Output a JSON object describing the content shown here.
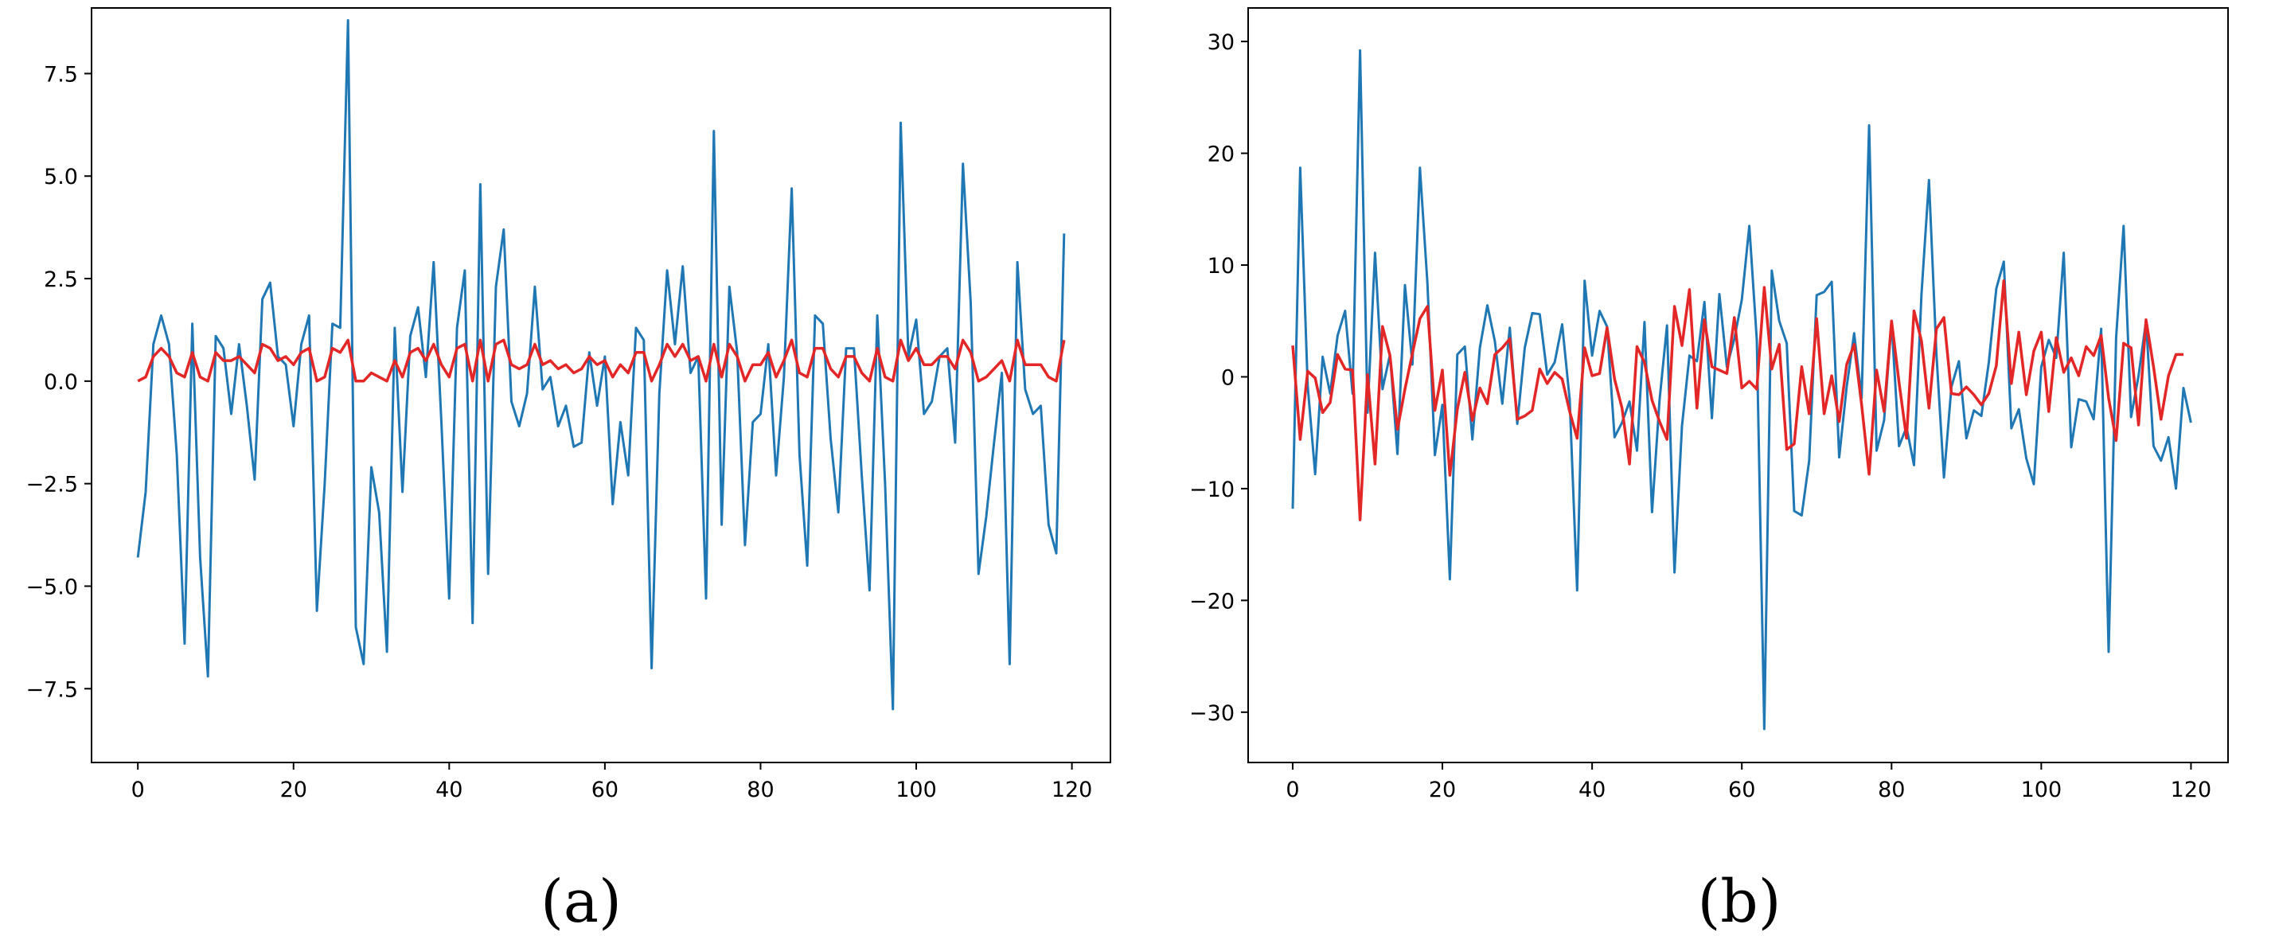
{
  "chart_data": [
    {
      "type": "line",
      "caption": "(a)",
      "xlim": [
        -5.95,
        124.95
      ],
      "ylim": [
        -9.3,
        9.1
      ],
      "xticks": [
        0,
        20,
        40,
        60,
        80,
        100,
        120
      ],
      "yticks": [
        -7.5,
        -5.0,
        -2.5,
        0.0,
        2.5,
        5.0,
        7.5
      ],
      "xtick_labels": [
        "0",
        "20",
        "40",
        "60",
        "80",
        "100",
        "120"
      ],
      "ytick_labels": [
        "−7.5",
        "−5.0",
        "−2.5",
        "0.0",
        "2.5",
        "5.0",
        "7.5"
      ],
      "grid": false,
      "series": [
        {
          "color": "#1f77b4",
          "values": [
            -4.3,
            -2.7,
            0.9,
            1.6,
            0.9,
            -1.8,
            -6.4,
            1.4,
            -4.3,
            -7.2,
            1.1,
            0.8,
            -0.8,
            0.9,
            -0.6,
            -2.4,
            2.0,
            2.4,
            0.6,
            0.4,
            -1.1,
            0.9,
            1.6,
            -5.6,
            -2.5,
            1.4,
            1.3,
            8.8,
            -6.0,
            -6.9,
            -2.1,
            -3.2,
            -6.6,
            1.3,
            -2.7,
            1.1,
            1.8,
            0.1,
            2.9,
            -1.0,
            -5.3,
            1.3,
            2.7,
            -5.9,
            4.8,
            -4.7,
            2.3,
            3.7,
            -0.5,
            -1.1,
            -0.3,
            2.3,
            -0.2,
            0.1,
            -1.1,
            -0.6,
            -1.6,
            -1.5,
            0.7,
            -0.6,
            0.6,
            -3.0,
            -1.0,
            -2.3,
            1.3,
            1.0,
            -7.0,
            -0.3,
            2.7,
            0.9,
            2.8,
            0.2,
            0.6,
            -5.3,
            6.1,
            -3.5,
            2.3,
            0.7,
            -4.0,
            -1.0,
            -0.8,
            0.9,
            -2.3,
            0.1,
            4.7,
            -1.8,
            -4.5,
            1.6,
            1.4,
            -1.4,
            -3.2,
            0.8,
            0.8,
            -2.3,
            -5.1,
            1.6,
            -2.5,
            -8.0,
            6.3,
            0.6,
            1.5,
            -0.8,
            -0.5,
            0.6,
            0.8,
            -1.5,
            5.3,
            1.9,
            -4.7,
            -3.3,
            -1.5,
            0.2,
            -6.9,
            2.9,
            -0.2,
            -0.8,
            -0.6,
            -3.5,
            -4.2,
            3.6
          ]
        },
        {
          "color": "#e32626",
          "values": [
            0.0,
            0.1,
            0.6,
            0.8,
            0.6,
            0.2,
            0.1,
            0.7,
            0.1,
            0.0,
            0.7,
            0.5,
            0.5,
            0.6,
            0.4,
            0.2,
            0.9,
            0.8,
            0.5,
            0.6,
            0.4,
            0.7,
            0.8,
            0.0,
            0.1,
            0.8,
            0.7,
            1.0,
            0.0,
            0.0,
            0.2,
            0.1,
            0.0,
            0.5,
            0.1,
            0.7,
            0.8,
            0.5,
            0.9,
            0.4,
            0.1,
            0.8,
            0.9,
            0.0,
            1.0,
            0.0,
            0.9,
            1.0,
            0.4,
            0.3,
            0.4,
            0.9,
            0.4,
            0.5,
            0.3,
            0.4,
            0.2,
            0.3,
            0.6,
            0.4,
            0.5,
            0.1,
            0.4,
            0.2,
            0.7,
            0.7,
            0.0,
            0.4,
            0.9,
            0.6,
            0.9,
            0.5,
            0.6,
            0.0,
            0.9,
            0.1,
            0.9,
            0.6,
            0.0,
            0.4,
            0.4,
            0.7,
            0.1,
            0.5,
            1.0,
            0.2,
            0.1,
            0.8,
            0.8,
            0.3,
            0.1,
            0.6,
            0.6,
            0.2,
            0.0,
            0.8,
            0.1,
            0.0,
            1.0,
            0.5,
            0.8,
            0.4,
            0.4,
            0.6,
            0.6,
            0.3,
            1.0,
            0.7,
            0.0,
            0.1,
            0.3,
            0.5,
            0.0,
            1.0,
            0.4,
            0.4,
            0.4,
            0.1,
            0.0,
            1.0
          ]
        }
      ]
    },
    {
      "type": "line",
      "caption": "(b)",
      "xlim": [
        -5.95,
        124.95
      ],
      "ylim": [
        -34.5,
        33.0
      ],
      "xticks": [
        0,
        20,
        40,
        60,
        80,
        100,
        120
      ],
      "yticks": [
        -30,
        -20,
        -10,
        0,
        10,
        20,
        30
      ],
      "xtick_labels": [
        "0",
        "20",
        "40",
        "60",
        "80",
        "100",
        "120"
      ],
      "ytick_labels": [
        "−30",
        "−20",
        "−10",
        "0",
        "10",
        "20",
        "30"
      ],
      "grid": false,
      "series": [
        {
          "color": "#1f77b4",
          "values": [
            -11.8,
            18.7,
            -0.8,
            -8.7,
            1.8,
            -1.5,
            3.7,
            5.9,
            -1.5,
            29.2,
            -3.2,
            11.1,
            -1.1,
            2.0,
            -6.9,
            8.2,
            1.1,
            18.7,
            8.4,
            -7.0,
            -2.5,
            -18.1,
            2.0,
            2.7,
            -5.6,
            2.6,
            6.4,
            3.2,
            -2.4,
            4.4,
            -4.2,
            2.6,
            5.7,
            5.6,
            0.2,
            1.3,
            4.7,
            -2.0,
            -19.1,
            8.6,
            1.9,
            5.9,
            4.5,
            -5.4,
            -4.1,
            -2.2,
            -6.6,
            4.9,
            -12.1,
            -2.1,
            4.6,
            -17.5,
            -4.4,
            1.9,
            1.4,
            6.7,
            -3.7,
            7.4,
            0.9,
            3.4,
            6.9,
            13.5,
            3.3,
            -31.5,
            9.5,
            5.0,
            3.0,
            -12.0,
            -12.4,
            -7.5,
            7.3,
            7.6,
            8.5,
            -7.2,
            -0.9,
            3.9,
            -1.9,
            22.5,
            -6.6,
            -3.9,
            4.9,
            -6.2,
            -4.5,
            -7.9,
            7.4,
            17.6,
            2.0,
            -9.0,
            -0.9,
            1.4,
            -5.5,
            -3.0,
            -3.5,
            1.3,
            7.9,
            10.3,
            -4.6,
            -2.9,
            -7.3,
            -9.6,
            0.9,
            3.3,
            1.7,
            11.1,
            -6.3,
            -2.0,
            -2.2,
            -3.8,
            4.3,
            -24.6,
            3.5,
            13.5,
            -3.6,
            0.1,
            5.0,
            -6.2,
            -7.5,
            -5.4,
            -10.0,
            -1.0,
            -4.1
          ]
        },
        {
          "color": "#e32626",
          "values": [
            2.8,
            -5.6,
            0.5,
            -0.1,
            -3.2,
            -2.3,
            2.0,
            0.7,
            0.6,
            -12.8,
            0.2,
            -7.8,
            4.5,
            1.9,
            -4.7,
            -1.1,
            2.1,
            5.2,
            6.3,
            -3.0,
            0.6,
            -8.8,
            -2.9,
            0.4,
            -3.9,
            -1.0,
            -2.4,
            2.0,
            2.6,
            3.4,
            -3.8,
            -3.5,
            -3.0,
            0.7,
            -0.6,
            0.4,
            -0.2,
            -3.1,
            -5.5,
            2.6,
            0.1,
            0.3,
            4.4,
            -0.2,
            -2.8,
            -7.8,
            2.7,
            1.3,
            -2.1,
            -4.0,
            -5.6,
            6.3,
            2.8,
            7.8,
            -2.8,
            5.1,
            0.9,
            0.6,
            0.3,
            5.3,
            -1.0,
            -0.4,
            -1.1,
            8.0,
            0.7,
            2.9,
            -6.5,
            -6.0,
            0.9,
            -3.3,
            5.2,
            -3.3,
            0.1,
            -4.0,
            1.1,
            2.9,
            -2.5,
            -8.7,
            0.6,
            -3.1,
            5.0,
            -0.5,
            -5.5,
            5.9,
            3.2,
            -2.8,
            4.3,
            5.3,
            -1.5,
            -1.6,
            -0.9,
            -1.6,
            -2.5,
            -1.5,
            1.0,
            8.6,
            -0.6,
            4.0,
            -1.6,
            2.3,
            4.0,
            -3.1,
            3.5,
            0.4,
            1.7,
            0.1,
            2.7,
            1.9,
            3.7,
            -1.9,
            -5.7,
            3.0,
            2.6,
            -4.3,
            5.1,
            0.9,
            -3.8,
            0.1,
            2.0,
            2.0
          ]
        }
      ]
    }
  ]
}
